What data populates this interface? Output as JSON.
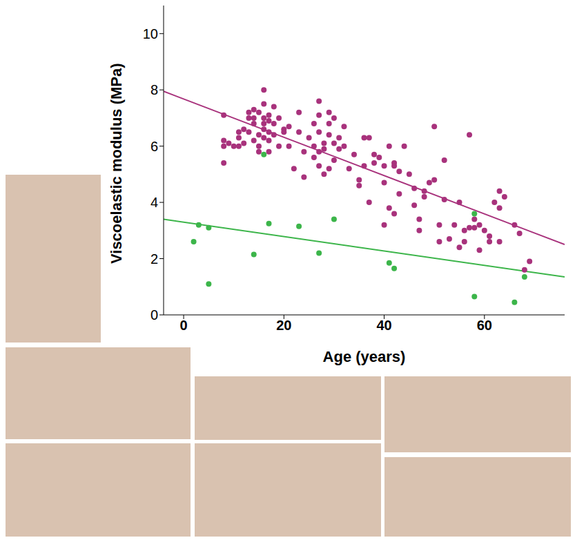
{
  "chart_data": {
    "type": "scatter",
    "xlabel": "Age (years)",
    "ylabel": "Viscoelastic modulus (MPa)",
    "xlim": [
      -4,
      76
    ],
    "ylim": [
      0,
      11
    ],
    "xticks": [
      0,
      20,
      40,
      60
    ],
    "yticks": [
      0,
      2,
      4,
      6,
      8,
      10
    ],
    "series": [
      {
        "type": "scatter",
        "marker": "circle",
        "color": "#a8327c",
        "x": [
          8,
          8,
          8,
          8,
          9,
          10,
          11,
          11,
          11,
          12,
          12,
          13,
          13,
          13,
          14,
          14,
          14,
          14,
          15,
          15,
          15,
          15,
          16,
          16,
          16,
          16,
          16,
          16,
          17,
          17,
          17,
          17,
          17,
          18,
          18,
          18,
          19,
          19,
          20,
          20,
          21,
          21,
          22,
          23,
          23,
          24,
          24,
          25,
          26,
          26,
          26,
          27,
          27,
          27,
          27,
          27,
          28,
          28,
          28,
          29,
          29,
          29,
          29,
          30,
          30,
          30,
          31,
          31,
          32,
          32,
          33,
          34,
          35,
          35,
          36,
          36,
          37,
          37,
          38,
          38,
          39,
          40,
          40,
          40,
          41,
          41,
          42,
          42,
          42,
          43,
          43,
          44,
          45,
          46,
          46,
          47,
          47,
          48,
          48,
          49,
          50,
          50,
          51,
          51,
          52,
          52,
          53,
          54,
          55,
          55,
          56,
          56,
          57,
          57,
          58,
          58,
          59,
          59,
          60,
          61,
          61,
          62,
          63,
          63,
          63,
          64,
          66,
          67,
          68,
          69
        ],
        "values": [
          7.1,
          6.2,
          6.0,
          5.4,
          6.1,
          6.0,
          6.5,
          6.3,
          6.0,
          6.6,
          6.1,
          7.2,
          7.0,
          6.5,
          7.3,
          7.0,
          6.8,
          6.2,
          7.2,
          6.4,
          6.0,
          5.8,
          8.0,
          7.5,
          7.0,
          6.8,
          6.6,
          6.3,
          7.1,
          6.9,
          6.5,
          6.2,
          5.8,
          7.4,
          6.8,
          6.4,
          7.0,
          6.0,
          6.6,
          6.5,
          6.7,
          6.0,
          5.2,
          6.5,
          7.2,
          4.9,
          5.8,
          6.3,
          6.8,
          6.0,
          5.6,
          7.1,
          7.6,
          6.5,
          5.8,
          5.3,
          6.1,
          5.9,
          5.0,
          7.2,
          6.8,
          6.4,
          5.2,
          7.0,
          6.1,
          5.5,
          6.3,
          5.9,
          6.7,
          6.0,
          5.2,
          5.7,
          4.6,
          4.8,
          6.3,
          5.3,
          4.0,
          6.3,
          5.7,
          5.4,
          5.6,
          4.7,
          5.3,
          3.2,
          6.0,
          3.8,
          5.4,
          5.3,
          3.6,
          5.1,
          4.3,
          6.0,
          5.0,
          4.5,
          3.9,
          3.4,
          3.0,
          4.4,
          4.2,
          4.7,
          6.7,
          4.8,
          2.6,
          3.2,
          5.5,
          4.1,
          2.7,
          3.2,
          4.0,
          2.4,
          3.0,
          2.6,
          6.4,
          3.1,
          3.4,
          3.1,
          3.2,
          2.3,
          3.0,
          2.6,
          2.8,
          4.0,
          4.4,
          3.8,
          2.6,
          4.2,
          3.2,
          2.9,
          1.6,
          1.9
        ]
      },
      {
        "type": "scatter",
        "marker": "circle",
        "color": "#3cb54a",
        "x": [
          2,
          3,
          5,
          5,
          14,
          16,
          17,
          23,
          27,
          30,
          41,
          42,
          58,
          58,
          66,
          68
        ],
        "values": [
          2.6,
          3.2,
          1.1,
          3.1,
          2.15,
          5.7,
          3.25,
          3.15,
          2.2,
          3.4,
          1.85,
          1.65,
          0.65,
          3.6,
          0.45,
          1.35
        ]
      },
      {
        "type": "line",
        "line_style": "solid",
        "color": "#a8327c",
        "x": [
          -4,
          76
        ],
        "values": [
          7.95,
          2.5
        ]
      },
      {
        "type": "line",
        "line_style": "solid",
        "color": "#3cb54a",
        "x": [
          -4,
          76
        ],
        "values": [
          3.4,
          1.35
        ]
      }
    ]
  }
}
